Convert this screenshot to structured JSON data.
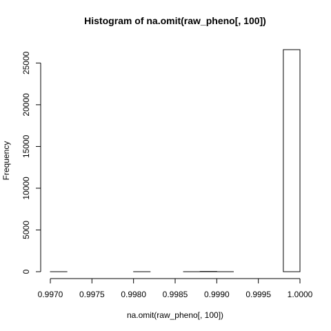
{
  "chart_data": {
    "type": "bar",
    "title": "Histogram of na.omit(raw_pheno[, 100])",
    "xlabel": "na.omit(raw_pheno[, 100])",
    "ylabel": "Frequency",
    "xlim": [
      0.997,
      1.0
    ],
    "ylim": [
      0,
      26600
    ],
    "x_ticks": [
      0.997,
      0.9975,
      0.998,
      0.9985,
      0.999,
      0.9995,
      1.0
    ],
    "x_tick_labels": [
      "0.9970",
      "0.9975",
      "0.9980",
      "0.9985",
      "0.9990",
      "0.9995",
      "1.0000"
    ],
    "y_ticks": [
      0,
      5000,
      10000,
      15000,
      20000,
      25000
    ],
    "y_tick_labels": [
      "0",
      "5000",
      "10000",
      "15000",
      "20000",
      "25000"
    ],
    "bin_width": 0.0002,
    "bin_starts": [
      0.997,
      0.9972,
      0.9974,
      0.9976,
      0.9978,
      0.998,
      0.9982,
      0.9984,
      0.9986,
      0.9988,
      0.999,
      0.9992,
      0.9994,
      0.9996,
      0.9998
    ],
    "values": [
      1,
      0,
      0,
      0,
      0,
      1,
      0,
      0,
      1,
      30,
      1,
      0,
      0,
      0,
      26600
    ],
    "grid": false,
    "colors": {
      "bar_fill": "#ffffff",
      "bar_stroke": "#000000"
    }
  }
}
